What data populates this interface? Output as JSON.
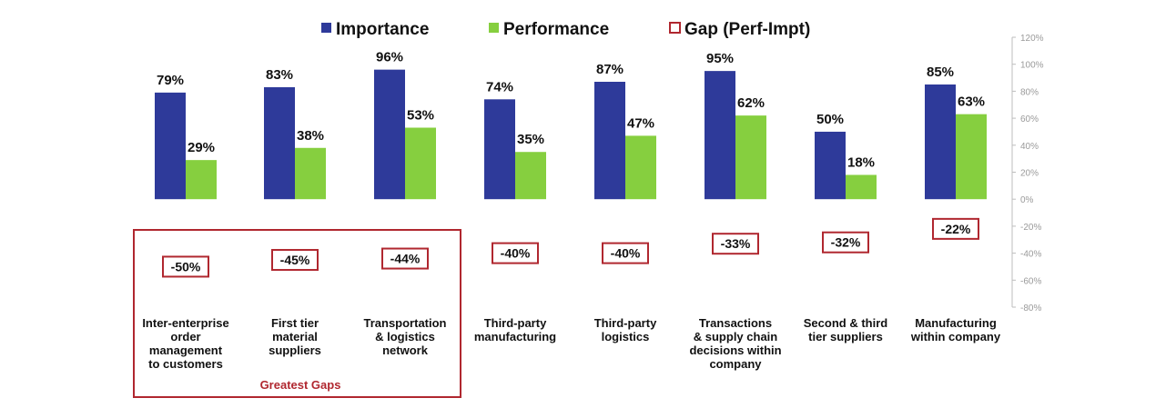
{
  "colors": {
    "importance": "#2e3a9a",
    "performance": "#86cf3f",
    "gap_border": "#b0272f",
    "axis": "#bdbdbd"
  },
  "chart_data": {
    "type": "bar",
    "categories": [
      [
        "Inter-enterprise",
        "order",
        "management",
        "to customers"
      ],
      [
        "First tier",
        "material",
        "suppliers"
      ],
      [
        "Transportation",
        "& logistics",
        "network"
      ],
      [
        "Third-party",
        "manufacturing"
      ],
      [
        "Third-party",
        "logistics"
      ],
      [
        "Transactions",
        "& supply chain",
        "decisions within",
        "company"
      ],
      [
        "Second & third",
        "tier suppliers"
      ],
      [
        "Manufacturing",
        "within company"
      ]
    ],
    "series": [
      {
        "name": "Importance",
        "values": [
          79,
          83,
          96,
          74,
          87,
          95,
          50,
          85
        ]
      },
      {
        "name": "Performance",
        "values": [
          29,
          38,
          53,
          35,
          47,
          62,
          18,
          63
        ]
      },
      {
        "name": "Gap (Perf-Impt)",
        "values": [
          -50,
          -45,
          -44,
          -40,
          -40,
          -33,
          -32,
          -22
        ]
      }
    ],
    "ylim": [
      -80,
      120
    ],
    "yticks": [
      120,
      100,
      80,
      60,
      40,
      20,
      0,
      -20,
      -40,
      -60,
      -80
    ],
    "tick_suffix": "%",
    "legend_position": "top",
    "annotation": "Greatest Gaps"
  }
}
